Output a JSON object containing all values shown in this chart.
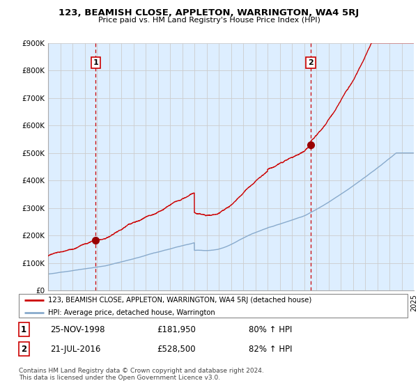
{
  "title": "123, BEAMISH CLOSE, APPLETON, WARRINGTON, WA4 5RJ",
  "subtitle": "Price paid vs. HM Land Registry's House Price Index (HPI)",
  "ylim": [
    0,
    900000
  ],
  "yticks": [
    0,
    100000,
    200000,
    300000,
    400000,
    500000,
    600000,
    700000,
    800000,
    900000
  ],
  "ytick_labels": [
    "£0",
    "£100K",
    "£200K",
    "£300K",
    "£400K",
    "£500K",
    "£600K",
    "£700K",
    "£800K",
    "£900K"
  ],
  "sale1_date": 1998.9,
  "sale1_price": 181950,
  "sale2_date": 2016.55,
  "sale2_price": 528500,
  "red_line_color": "#cc0000",
  "blue_line_color": "#88aacc",
  "grid_color": "#cccccc",
  "bg_color": "#ddeeff",
  "legend_line1": "123, BEAMISH CLOSE, APPLETON, WARRINGTON, WA4 5RJ (detached house)",
  "legend_line2": "HPI: Average price, detached house, Warrington",
  "table_row1": [
    "1",
    "25-NOV-1998",
    "£181,950",
    "80% ↑ HPI"
  ],
  "table_row2": [
    "2",
    "21-JUL-2016",
    "£528,500",
    "82% ↑ HPI"
  ],
  "footnote": "Contains HM Land Registry data © Crown copyright and database right 2024.\nThis data is licensed under the Open Government Licence v3.0.",
  "xmin": 1995,
  "xmax": 2025
}
